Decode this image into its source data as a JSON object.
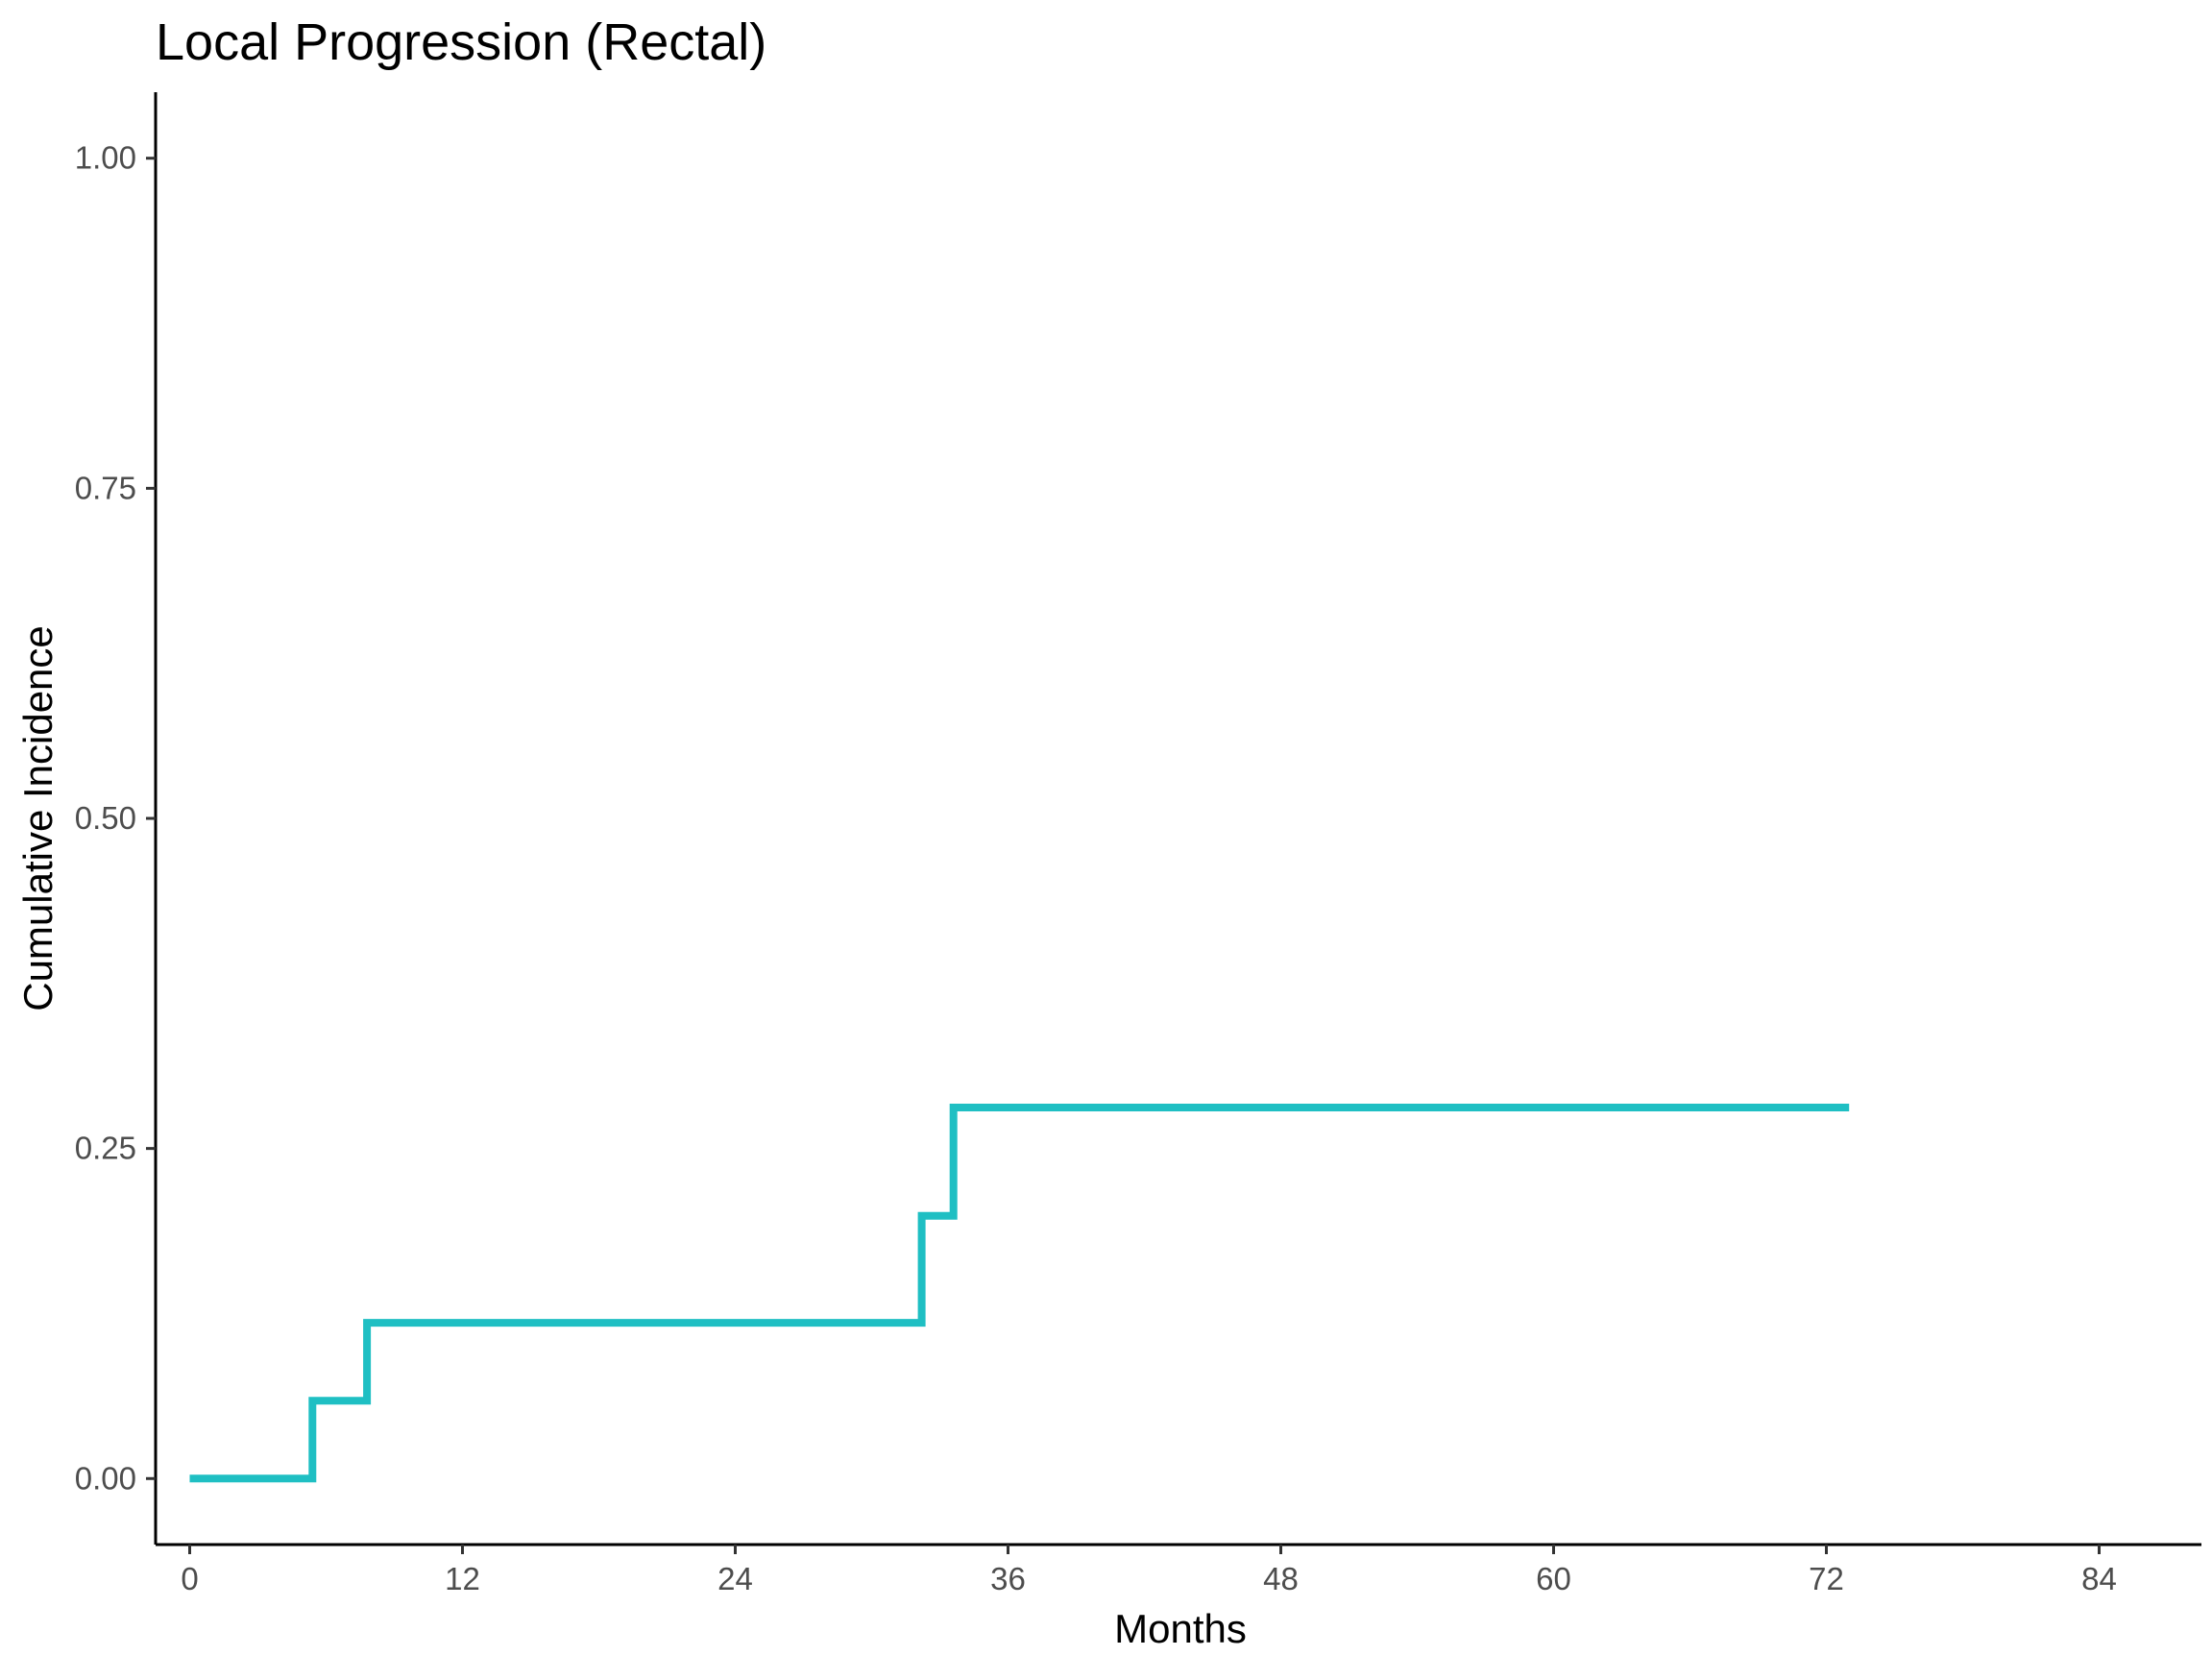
{
  "chart_data": {
    "type": "line",
    "step": true,
    "title": "Local Progression (Rectal)",
    "xlabel": "Months",
    "ylabel": "Cumulative Incidence",
    "xlim": [
      -1.5,
      88.5
    ],
    "ylim": [
      -0.05,
      1.05
    ],
    "x_ticks": [
      0,
      12,
      24,
      36,
      48,
      60,
      72,
      84
    ],
    "x_tick_labels": [
      "0",
      "12",
      "24",
      "36",
      "48",
      "60",
      "72",
      "84"
    ],
    "y_ticks": [
      0,
      0.25,
      0.5,
      0.75,
      1.0
    ],
    "y_tick_labels": [
      "0.00",
      "0.25",
      "0.50",
      "0.75",
      "1.00"
    ],
    "grid": false,
    "legend": "none",
    "series": [
      {
        "color": "#1fbfc3",
        "x": [
          0,
          5.4,
          7.8,
          32.2,
          33.6,
          73
        ],
        "y": [
          0,
          0.059,
          0.118,
          0.199,
          0.281,
          0.281
        ]
      }
    ]
  }
}
